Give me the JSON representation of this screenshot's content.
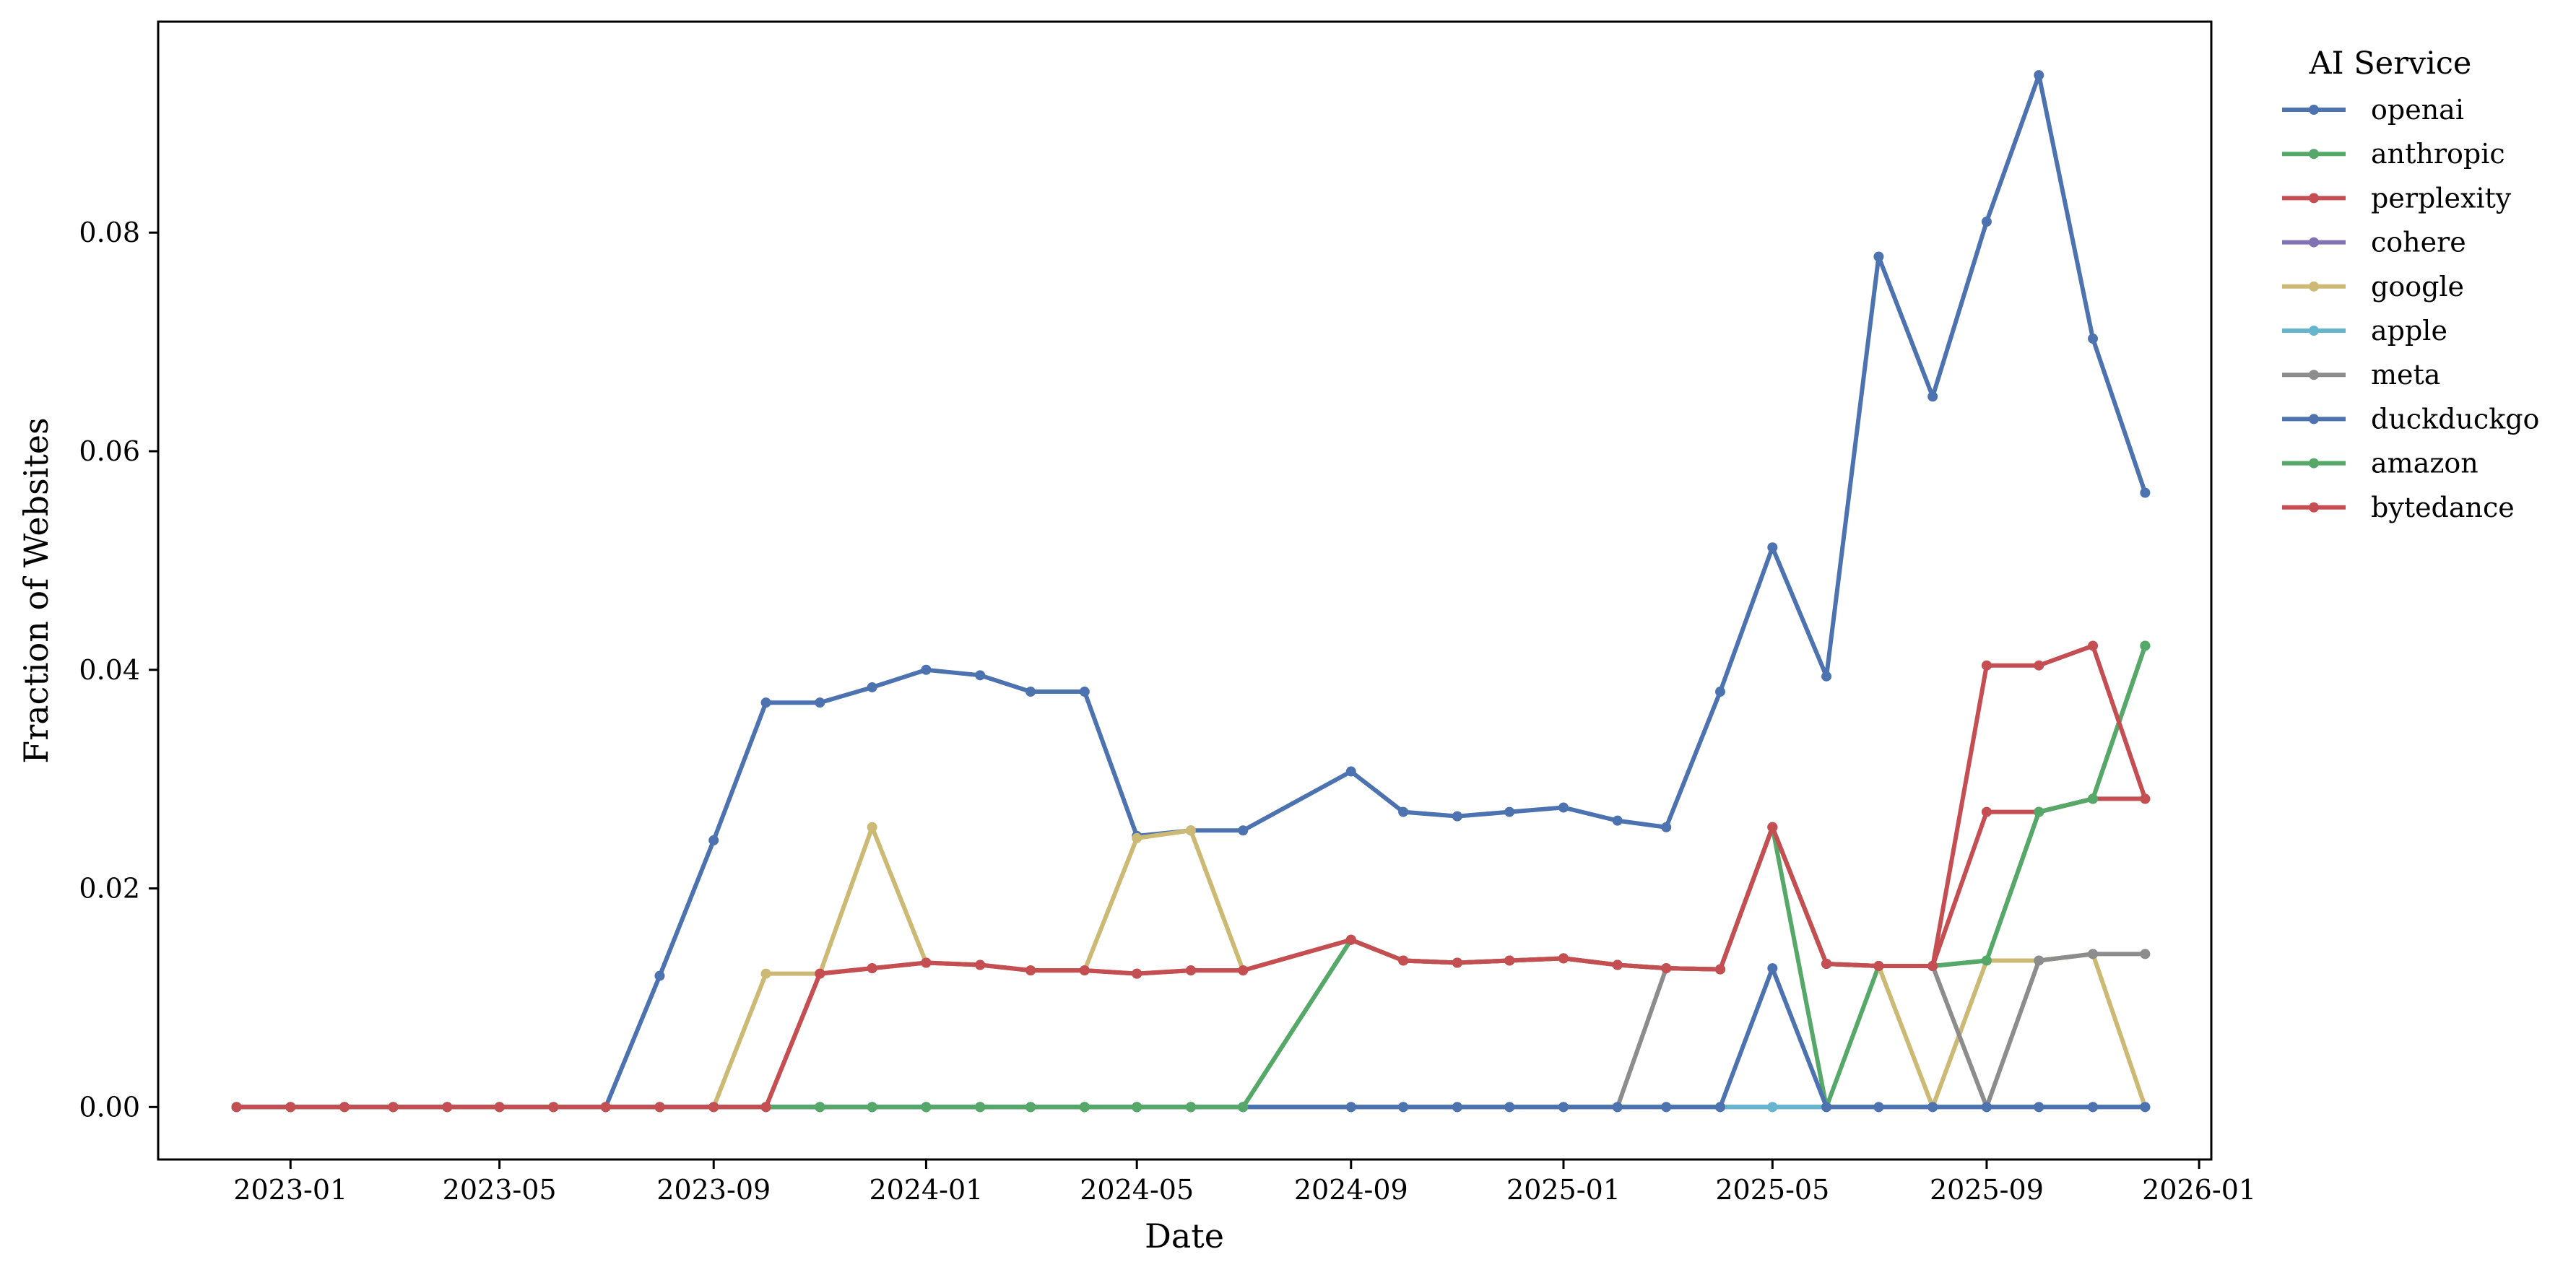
{
  "chart_data": {
    "type": "line",
    "xlabel": "Date",
    "ylabel": "Fraction of Websites",
    "x_ticks": [
      "2023-01",
      "2023-05",
      "2023-09",
      "2024-01",
      "2024-05",
      "2024-09",
      "2025-01",
      "2025-05",
      "2025-09",
      "2026-01"
    ],
    "y_ticks": [
      "0.00",
      "0.02",
      "0.04",
      "0.06",
      "0.08"
    ],
    "xlim": [
      "2022-10-17",
      "2026-01-08"
    ],
    "ylim": [
      -0.0048,
      0.0993
    ],
    "legend_title": "AI Service",
    "legend_position": "outside-top-right",
    "grid": false,
    "x": [
      "2022-12-01",
      "2023-01-01",
      "2023-02-01",
      "2023-03-01",
      "2023-04-01",
      "2023-05-01",
      "2023-06-01",
      "2023-07-01",
      "2023-08-01",
      "2023-09-01",
      "2023-10-01",
      "2023-11-01",
      "2023-12-01",
      "2024-01-01",
      "2024-02-01",
      "2024-03-01",
      "2024-04-01",
      "2024-05-01",
      "2024-06-01",
      "2024-07-01",
      "2024-09-01",
      "2024-10-01",
      "2024-11-01",
      "2024-12-01",
      "2025-01-01",
      "2025-02-01",
      "2025-03-01",
      "2025-04-01",
      "2025-05-01",
      "2025-06-01",
      "2025-07-01",
      "2025-08-01",
      "2025-09-01",
      "2025-10-01",
      "2025-11-01",
      "2025-12-01"
    ],
    "series": [
      {
        "name": "openai",
        "color": "#4c72b0",
        "values": [
          0,
          0,
          0,
          0,
          0,
          0,
          0,
          0,
          0.012,
          0.0244,
          0.037,
          0.037,
          0.0384,
          0.04,
          0.0395,
          0.038,
          0.038,
          0.0248,
          0.0253,
          0.0253,
          0.0307,
          0.027,
          0.0266,
          0.027,
          0.0274,
          0.0262,
          0.0256,
          0.038,
          0.0512,
          0.0394,
          0.0778,
          0.065,
          0.081,
          0.0944,
          0.0703,
          0.0562
        ]
      },
      {
        "name": "anthropic",
        "color": "#55a868",
        "values": [
          0,
          0,
          0,
          0,
          0,
          0,
          0,
          0,
          0,
          0,
          0,
          0,
          0,
          0,
          0,
          0,
          0,
          0,
          0,
          0,
          0.0153,
          0.0134,
          0.0132,
          0.0134,
          0.0136,
          0.013,
          0.0127,
          0.0126,
          0.0256,
          0,
          0.0129,
          0.0129,
          0.0134,
          0.027,
          0.0282,
          0.0422
        ]
      },
      {
        "name": "perplexity",
        "color": "#c44e52",
        "values": [
          0,
          0,
          0,
          0,
          0,
          0,
          0,
          0,
          0,
          0,
          0,
          0.0122,
          0.0127,
          0.0132,
          0.013,
          0.0125,
          0.0125,
          0.0122,
          0.0125,
          0.0125,
          0.0153,
          0.0134,
          0.0132,
          0.0134,
          0.0136,
          0.013,
          0.0127,
          0.0126,
          0.0256,
          0.0131,
          0.0129,
          0.0129,
          0.027,
          0.027,
          0.0282,
          0.0282
        ]
      },
      {
        "name": "cohere",
        "color": "#8172b3",
        "values": [
          0,
          0,
          0,
          0,
          0,
          0,
          0,
          0,
          0,
          0,
          0,
          0,
          0,
          0,
          0,
          0,
          0,
          0,
          0,
          0,
          0,
          0,
          0,
          0,
          0,
          0,
          0,
          0,
          0,
          0,
          0,
          0,
          0,
          0,
          0,
          0
        ]
      },
      {
        "name": "google",
        "color": "#ccb974",
        "values": [
          0,
          0,
          0,
          0,
          0,
          0,
          0,
          0,
          0,
          0,
          0.0122,
          0.0122,
          0.0256,
          0.0132,
          0.013,
          0.0125,
          0.0125,
          0.0246,
          0.0253,
          0.0125,
          0.0153,
          0.0134,
          0.0132,
          0.0134,
          0.0136,
          0.013,
          0.0127,
          0.0126,
          0.0256,
          0.0131,
          0.0129,
          0,
          0.0134,
          0.0134,
          0.014,
          0
        ]
      },
      {
        "name": "apple",
        "color": "#64b5cd",
        "values": [
          0,
          0,
          0,
          0,
          0,
          0,
          0,
          0,
          0,
          0,
          0,
          0,
          0,
          0,
          0,
          0,
          0,
          0,
          0,
          0,
          0,
          0,
          0,
          0,
          0,
          0,
          0,
          0,
          0,
          0,
          0,
          0,
          0,
          0,
          0,
          0
        ]
      },
      {
        "name": "meta",
        "color": "#8c8c8c",
        "values": [
          0,
          0,
          0,
          0,
          0,
          0,
          0,
          0,
          0,
          0,
          0,
          0,
          0,
          0,
          0,
          0,
          0,
          0,
          0,
          0,
          0,
          0,
          0,
          0,
          0,
          0,
          0.0127,
          0.0126,
          0.0256,
          0.0131,
          0.0129,
          0.0129,
          0,
          0.0134,
          0.014,
          0.014
        ]
      },
      {
        "name": "duckduckgo",
        "color": "#4c72b0",
        "values": [
          0,
          0,
          0,
          0,
          0,
          0,
          0,
          0,
          0,
          0,
          0,
          0,
          0,
          0,
          0,
          0,
          0,
          0,
          0,
          0,
          0,
          0,
          0,
          0,
          0,
          0,
          0,
          0,
          0.0127,
          0,
          0,
          0,
          0,
          0,
          0,
          0
        ]
      },
      {
        "name": "amazon",
        "color": "#55a868",
        "values": [
          0,
          0,
          0,
          0,
          0,
          0,
          0,
          0,
          0,
          0,
          0,
          0,
          0,
          0,
          0,
          0,
          0,
          0,
          0,
          0,
          0.0153,
          0.0134,
          0.0132,
          0.0134,
          0.0136,
          0.013,
          0.0127,
          0.0126,
          0.0256,
          0.0131,
          0.0129,
          0.0129,
          0.0134,
          0.027,
          0.0282,
          0.0422
        ]
      },
      {
        "name": "bytedance",
        "color": "#c44e52",
        "values": [
          0,
          0,
          0,
          0,
          0,
          0,
          0,
          0,
          0,
          0,
          0,
          0.0122,
          0.0127,
          0.0132,
          0.013,
          0.0125,
          0.0125,
          0.0122,
          0.0125,
          0.0125,
          0.0153,
          0.0134,
          0.0132,
          0.0134,
          0.0136,
          0.013,
          0.0127,
          0.0126,
          0.0256,
          0.0131,
          0.0129,
          0.0129,
          0.0404,
          0.0404,
          0.0422,
          0.0282
        ]
      }
    ]
  }
}
